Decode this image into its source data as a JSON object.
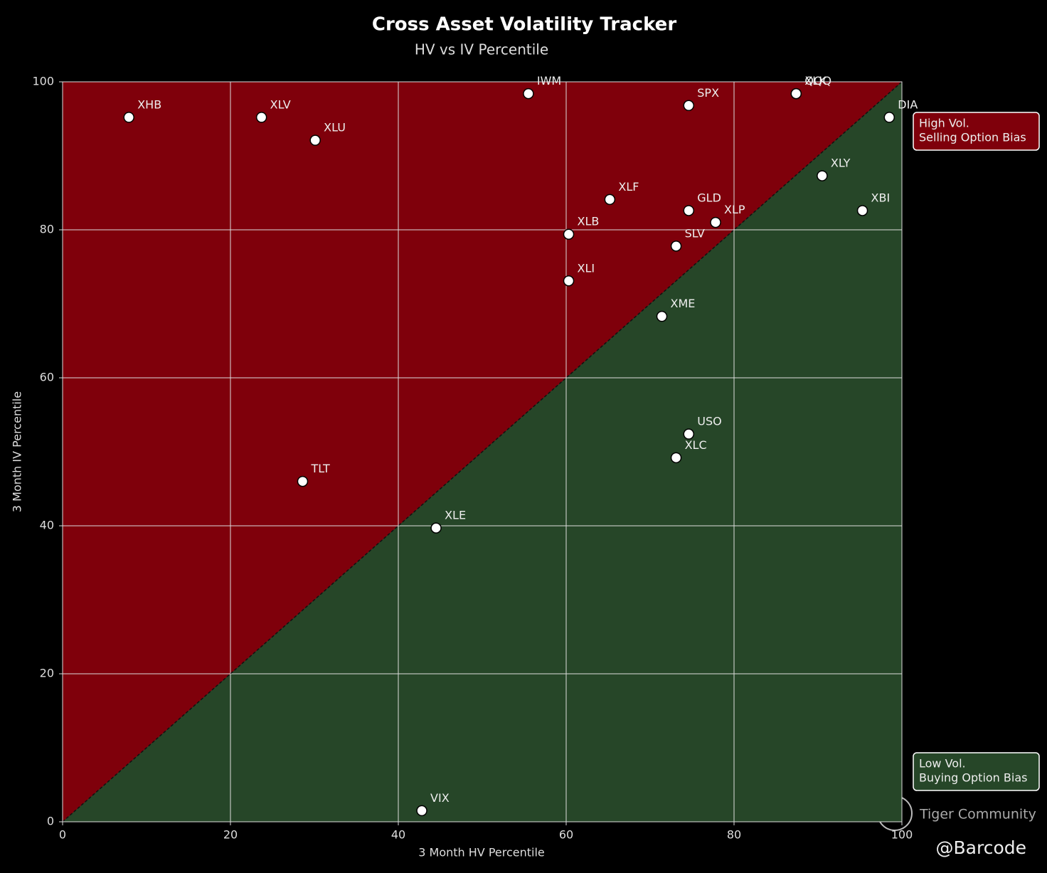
{
  "chart_data": {
    "type": "scatter",
    "title": "Cross Asset Volatility Tracker",
    "subtitle": "HV vs IV Percentile",
    "xlabel": "3 Month HV Percentile",
    "ylabel": "3 Month IV Percentile",
    "xlim": [
      0,
      100
    ],
    "ylim": [
      0,
      100
    ],
    "xticks": [
      0,
      20,
      40,
      60,
      80,
      100
    ],
    "yticks": [
      0,
      20,
      40,
      60,
      80,
      100
    ],
    "grid": true,
    "color": "#ffffff",
    "upper_color": "#7f000b",
    "lower_color": "#264628",
    "labels": [
      "XHB",
      "XLV",
      "XLU",
      "IWM",
      "SPX",
      "XLK",
      "QQQ",
      "DIA",
      "XLY",
      "XBI",
      "XLF",
      "GLD",
      "XLP",
      "XLB",
      "SLV",
      "XLI",
      "XME",
      "USO",
      "XLC",
      "TLT",
      "XLE",
      "VIX"
    ],
    "x": [
      7.9,
      23.7,
      30.1,
      55.5,
      74.6,
      87.4,
      87.4,
      98.5,
      90.5,
      95.3,
      65.2,
      74.6,
      77.8,
      60.3,
      73.1,
      60.3,
      71.4,
      74.6,
      73.1,
      28.6,
      44.5,
      42.8
    ],
    "values": [
      95.2,
      95.2,
      92.1,
      98.4,
      96.8,
      98.4,
      98.4,
      95.2,
      87.3,
      82.6,
      84.1,
      82.6,
      81.0,
      79.4,
      77.8,
      73.1,
      68.3,
      52.4,
      49.2,
      46.0,
      39.7,
      1.5
    ],
    "annotations": [
      {
        "lines": [
          "High Vol.",
          "Selling Option Bias"
        ],
        "color": "#7f000b"
      },
      {
        "lines": [
          "Low Vol.",
          "Buying Option Bias"
        ],
        "color": "#264628"
      }
    ]
  },
  "footer": {
    "brand": "Tiger Community",
    "handle": "@Barcode"
  }
}
